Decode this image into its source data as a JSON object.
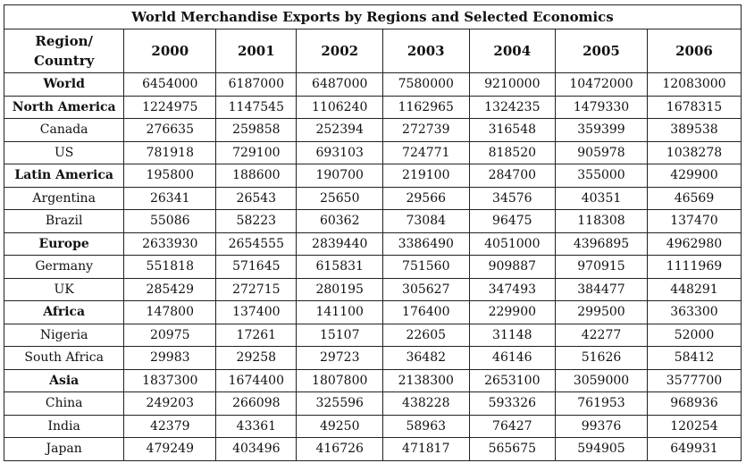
{
  "title": "World Merchandise Exports by Regions and Selected Economics",
  "header": {
    "region_label": "Region/\nCountry",
    "years": [
      "2000",
      "2001",
      "2002",
      "2003",
      "2004",
      "2005",
      "2006"
    ]
  },
  "rows": [
    {
      "name": "World",
      "bold": true,
      "values": [
        "6454000",
        "6187000",
        "6487000",
        "7580000",
        "9210000",
        "10472000",
        "12083000"
      ]
    },
    {
      "name": "North America",
      "bold": true,
      "values": [
        "1224975",
        "1147545",
        "1106240",
        "1162965",
        "1324235",
        "1479330",
        "1678315"
      ]
    },
    {
      "name": "Canada",
      "bold": false,
      "values": [
        "276635",
        "259858",
        "252394",
        "272739",
        "316548",
        "359399",
        "389538"
      ]
    },
    {
      "name": "US",
      "bold": false,
      "values": [
        "781918",
        "729100",
        "693103",
        "724771",
        "818520",
        "905978",
        "1038278"
      ]
    },
    {
      "name": "Latin America",
      "bold": true,
      "values": [
        "195800",
        "188600",
        "190700",
        "219100",
        "284700",
        "355000",
        "429900"
      ]
    },
    {
      "name": "Argentina",
      "bold": false,
      "values": [
        "26341",
        "26543",
        "25650",
        "29566",
        "34576",
        "40351",
        "46569"
      ]
    },
    {
      "name": "Brazil",
      "bold": false,
      "values": [
        "55086",
        "58223",
        "60362",
        "73084",
        "96475",
        "118308",
        "137470"
      ]
    },
    {
      "name": "Europe",
      "bold": true,
      "values": [
        "2633930",
        "2654555",
        "2839440",
        "3386490",
        "4051000",
        "4396895",
        "4962980"
      ]
    },
    {
      "name": "Germany",
      "bold": false,
      "values": [
        "551818",
        "571645",
        "615831",
        "751560",
        "909887",
        "970915",
        "1111969"
      ]
    },
    {
      "name": "UK",
      "bold": false,
      "values": [
        "285429",
        "272715",
        "280195",
        "305627",
        "347493",
        "384477",
        "448291"
      ]
    },
    {
      "name": "Africa",
      "bold": true,
      "values": [
        "147800",
        "137400",
        "141100",
        "176400",
        "229900",
        "299500",
        "363300"
      ]
    },
    {
      "name": "Nigeria",
      "bold": false,
      "values": [
        "20975",
        "17261",
        "15107",
        "22605",
        "31148",
        "42277",
        "52000"
      ]
    },
    {
      "name": "South Africa",
      "bold": false,
      "values": [
        "29983",
        "29258",
        "29723",
        "36482",
        "46146",
        "51626",
        "58412"
      ]
    },
    {
      "name": "Asia",
      "bold": true,
      "values": [
        "1837300",
        "1674400",
        "1807800",
        "2138300",
        "2653100",
        "3059000",
        "3577700"
      ]
    },
    {
      "name": "China",
      "bold": false,
      "values": [
        "249203",
        "266098",
        "325596",
        "438228",
        "593326",
        "761953",
        "968936"
      ]
    },
    {
      "name": "India",
      "bold": false,
      "values": [
        "42379",
        "43361",
        "49250",
        "58963",
        "76427",
        "99376",
        "120254"
      ]
    },
    {
      "name": "Japan",
      "bold": false,
      "values": [
        "479249",
        "403496",
        "416726",
        "471817",
        "565675",
        "594905",
        "649931"
      ]
    }
  ]
}
